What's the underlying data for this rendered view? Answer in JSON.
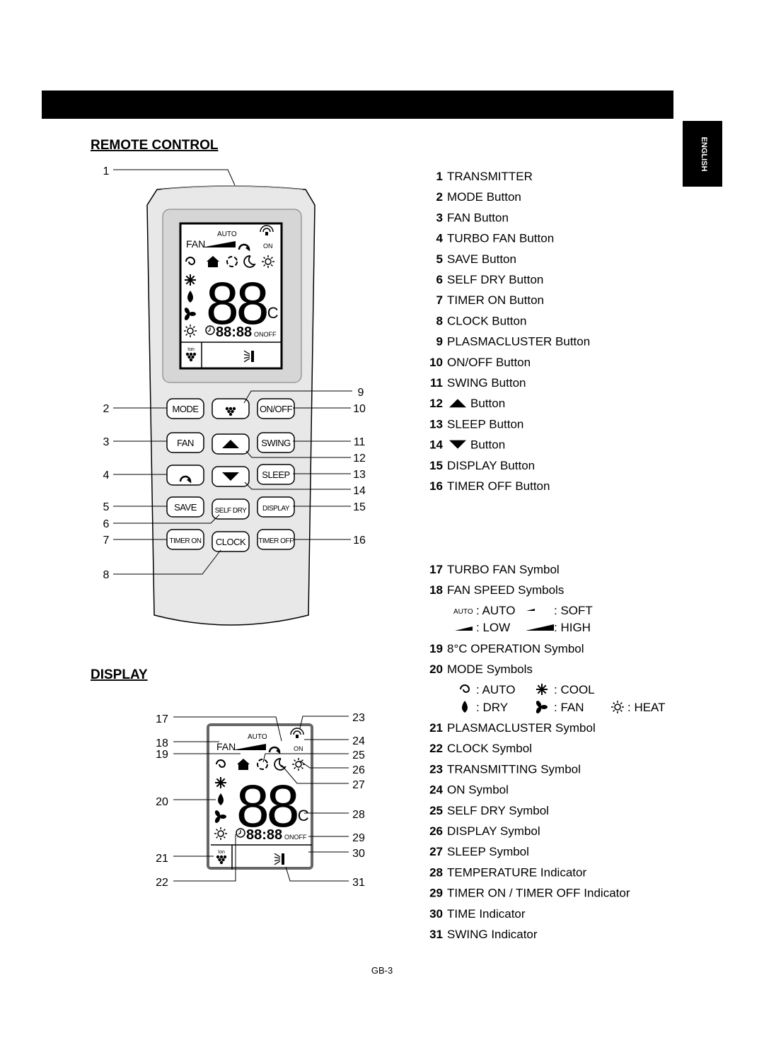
{
  "tab": "ENGLISH",
  "remote_section": {
    "title": "REMOTE CONTROL",
    "callouts": [
      "1",
      "2",
      "3",
      "4",
      "5",
      "6",
      "7",
      "8",
      "9",
      "10",
      "11",
      "12",
      "13",
      "14",
      "15",
      "16"
    ]
  },
  "display_section": {
    "title": "DISPLAY",
    "callouts": [
      "17",
      "18",
      "19",
      "20",
      "21",
      "22",
      "23",
      "24",
      "25",
      "26",
      "27",
      "28",
      "29",
      "30",
      "31"
    ]
  },
  "lcd": {
    "auto": "AUTO",
    "fan": "FAN",
    "on": "ON",
    "temp": "88",
    "unit": "°C",
    "time": "88:88",
    "onoff": "ONOFF",
    "ion": "Ion"
  },
  "buttons": [
    "MODE",
    "ON/OFF",
    "FAN",
    "SWING",
    "SLEEP",
    "SAVE",
    "SELF DRY",
    "DISPLAY",
    "TIMER ON",
    "CLOCK",
    "TIMER OFF"
  ],
  "legend": [
    {
      "num": "1",
      "text": "TRANSMITTER"
    },
    {
      "num": "2",
      "text": "MODE Button"
    },
    {
      "num": "3",
      "text": "FAN Button"
    },
    {
      "num": "4",
      "text": "TURBO FAN Button"
    },
    {
      "num": "5",
      "text": "SAVE Button"
    },
    {
      "num": "6",
      "text": "SELF DRY Button"
    },
    {
      "num": "7",
      "text": "TIMER ON Button"
    },
    {
      "num": "8",
      "text": "CLOCK Button"
    },
    {
      "num": "9",
      "text": "PLASMACLUSTER Button"
    },
    {
      "num": "10",
      "text": "ON/OFF Button"
    },
    {
      "num": "11",
      "text": "SWING Button"
    },
    {
      "num": "12",
      "text": "Button"
    },
    {
      "num": "13",
      "text": "SLEEP Button"
    },
    {
      "num": "14",
      "text": "Button"
    },
    {
      "num": "15",
      "text": "DISPLAY Button"
    },
    {
      "num": "16",
      "text": "TIMER OFF Button"
    },
    {
      "num": "17",
      "text": "TURBO FAN Symbol"
    },
    {
      "num": "18",
      "text": "FAN SPEED Symbols"
    },
    {
      "num": "19",
      "text": "8°C OPERATION Symbol"
    },
    {
      "num": "20",
      "text": "MODE Symbols"
    },
    {
      "num": "21",
      "text": "PLASMACLUSTER Symbol"
    },
    {
      "num": "22",
      "text": "CLOCK Symbol"
    },
    {
      "num": "23",
      "text": "TRANSMITTING Symbol"
    },
    {
      "num": "24",
      "text": "ON Symbol"
    },
    {
      "num": "25",
      "text": "SELF DRY Symbol"
    },
    {
      "num": "26",
      "text": "DISPLAY Symbol"
    },
    {
      "num": "27",
      "text": "SLEEP Symbol"
    },
    {
      "num": "28",
      "text": "TEMPERATURE Indicator"
    },
    {
      "num": "29",
      "text": "TIMER ON  / TIMER OFF Indicator"
    },
    {
      "num": "30",
      "text": "TIME Indicator"
    },
    {
      "num": "31",
      "text": "SWING Indicator"
    }
  ],
  "fan_speeds": {
    "auto_mark": "AUTO",
    "labels": [
      ": AUTO",
      ": SOFT",
      ": LOW",
      ": HIGH"
    ]
  },
  "modes": [
    ": AUTO",
    ": COOL",
    ": DRY",
    ": FAN",
    ": HEAT"
  ],
  "footer": "GB-3"
}
